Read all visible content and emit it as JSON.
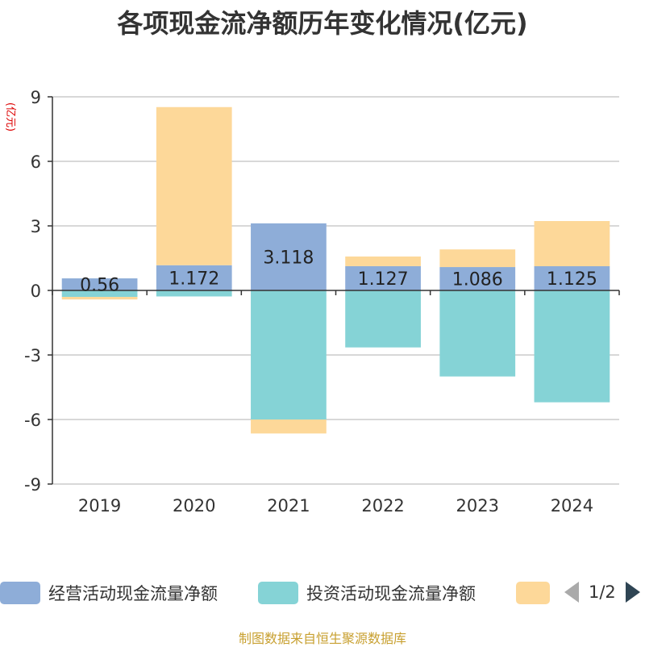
{
  "chart_data": {
    "type": "bar",
    "stacked": true,
    "title": "各项现金流净额历年变化情况(亿元)",
    "ylabel": "(亿元)",
    "xlabel": "",
    "categories": [
      "2019",
      "2020",
      "2021",
      "2022",
      "2023",
      "2024"
    ],
    "ylim": [
      -9,
      9
    ],
    "yticks": [
      9,
      6,
      3,
      0,
      -3,
      -6,
      -9
    ],
    "grid": true,
    "series": [
      {
        "name": "经营活动现金流量净额",
        "color": "#8eadd8",
        "values": [
          0.56,
          1.172,
          3.118,
          1.127,
          1.086,
          1.125
        ],
        "labels": [
          "0.56",
          "1.172",
          "3.118",
          "1.127",
          "1.086",
          "1.125"
        ]
      },
      {
        "name": "投资活动现金流量净额",
        "color": "#85d3d6",
        "values": [
          -0.3,
          -0.28,
          -6.0,
          -2.65,
          -4.0,
          -5.2
        ]
      },
      {
        "name": "",
        "color": "#fdd899",
        "values": [
          -0.12,
          7.35,
          -0.65,
          0.45,
          0.82,
          2.1
        ]
      }
    ],
    "legend_position": "bottom"
  },
  "legend": {
    "pager_text": "1/2"
  },
  "source": "制图数据来自恒生聚源数据库",
  "colors": {
    "axis": "#333333",
    "grid": "#cccccc",
    "ylabel": "#dd0000"
  }
}
